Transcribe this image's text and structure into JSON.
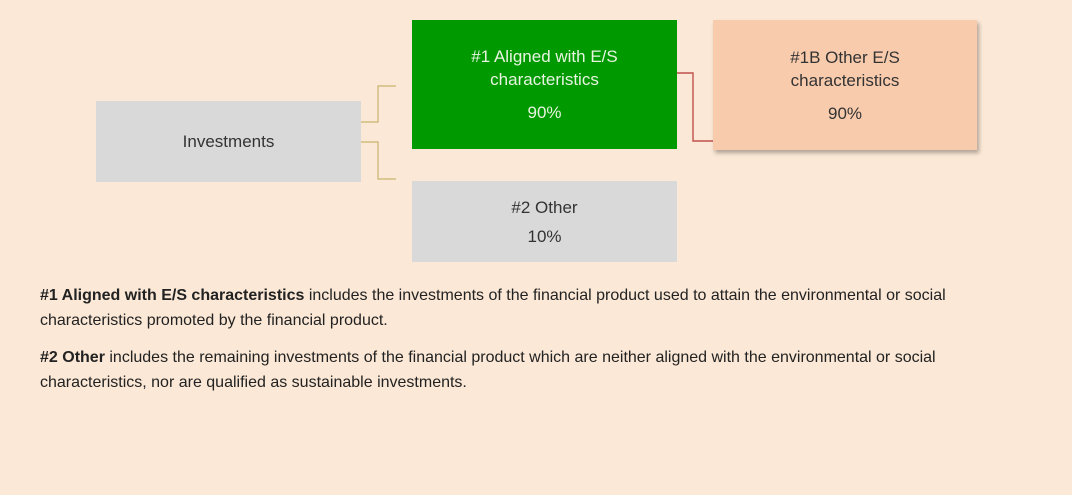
{
  "nodes": [
    {
      "label": "Investments"
    },
    {
      "label": "#1 Aligned with E/S characteristics",
      "value": "90%"
    },
    {
      "label": "#1B Other E/S characteristics",
      "value": "90%"
    },
    {
      "label": "#2 Other",
      "value": "10%"
    }
  ],
  "notes": [
    {
      "term": "#1 Aligned with E/S characteristics",
      "text": "includes the investments of the financial product used to attain the environmental or social characteristics promoted by the financial product."
    },
    {
      "term": "#2 Other",
      "text": "includes the remaining investments of the financial product which are neither aligned with the environmental or social characteristics, nor are qualified as sustainable investments."
    }
  ]
}
